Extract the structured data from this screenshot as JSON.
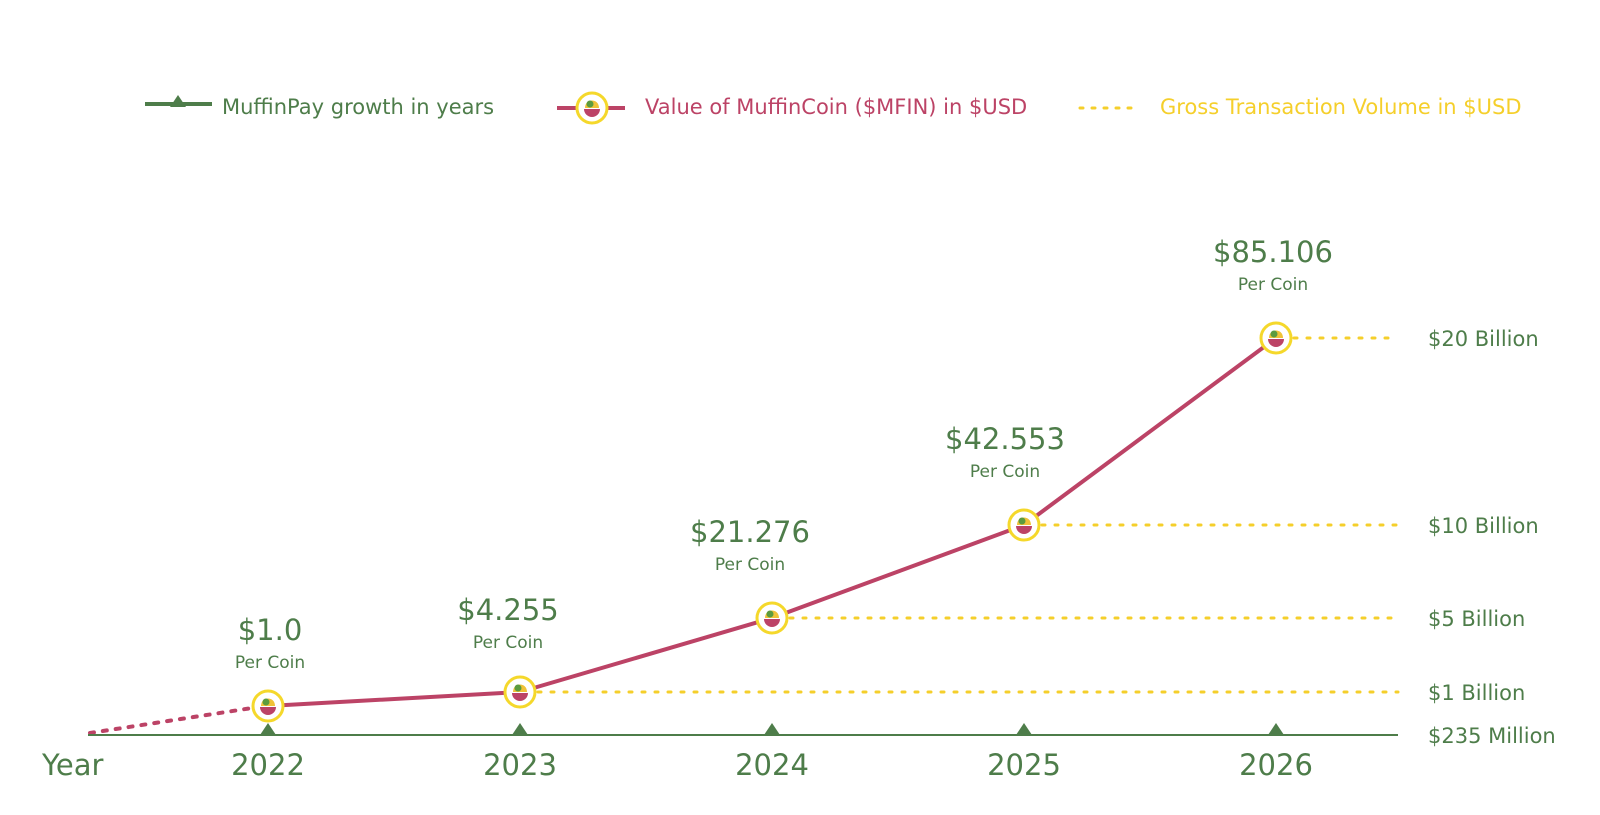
{
  "legend": {
    "growth_label": "MuffinPay growth in years",
    "value_label": "Value of MuffinCoin ($MFIN) in $USD",
    "volume_label": "Gross Transaction Volume in $USD"
  },
  "chart_data": {
    "type": "line",
    "xlabel": "Year",
    "categories": [
      "2022",
      "2023",
      "2024",
      "2025",
      "2026"
    ],
    "series": [
      {
        "name": "Value of MuffinCoin ($MFIN) in $USD",
        "values": [
          1.0,
          4.255,
          21.276,
          42.553,
          85.106
        ],
        "point_labels": [
          "$1.0",
          "$4.255",
          "$21.276",
          "$42.553",
          "$85.106"
        ],
        "point_sublabel": "Per Coin"
      },
      {
        "name": "Gross Transaction Volume in $USD",
        "values": [
          "$235 Million",
          "$1 Billion",
          "$5 Billion",
          "$10 Billion",
          "$20 Billion"
        ],
        "reference_labels": [
          "$235 Million",
          "$1 Billion",
          "$5 Billion",
          "$10 Billion",
          "$20 Billion"
        ]
      },
      {
        "name": "MuffinPay growth in years",
        "values": [
          "2022",
          "2023",
          "2024",
          "2025",
          "2026"
        ]
      }
    ],
    "legend_position": "top",
    "grid": false
  },
  "colors": {
    "growth": "#4e7d4a",
    "value": "#bc4366",
    "volume": "#f5cf2b",
    "coin_ring": "#f5d82b",
    "coin_fill": "#ffffff"
  },
  "icons": {
    "coin": "muffin-coin-icon",
    "triangle": "triangle-marker-icon"
  }
}
